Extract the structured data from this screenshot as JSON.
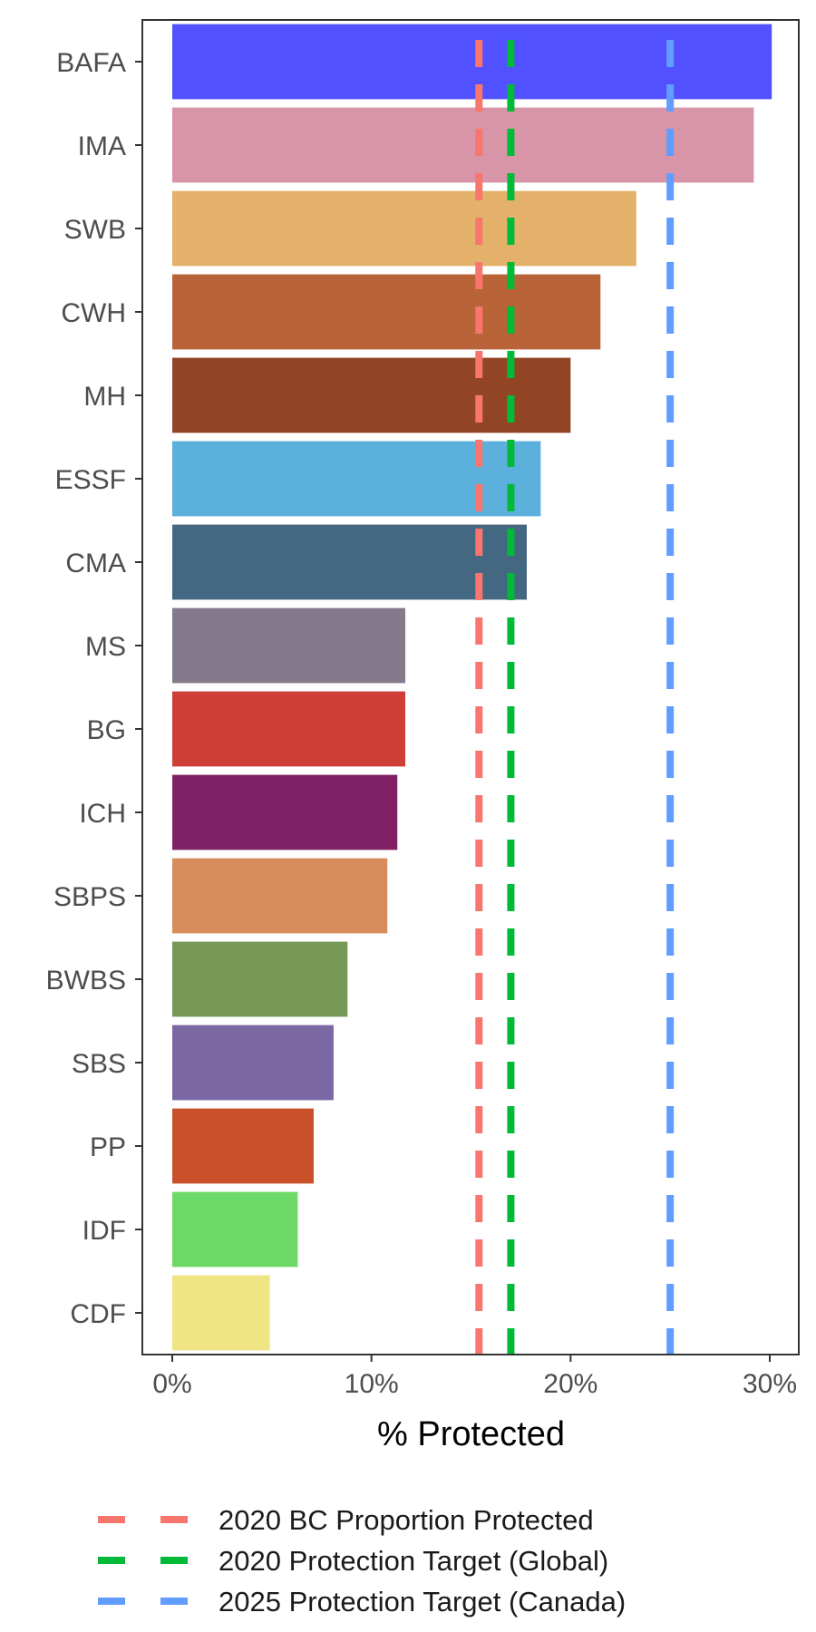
{
  "chart_data": {
    "type": "bar",
    "orientation": "horizontal",
    "xlabel": "% Protected",
    "ylabel": "",
    "xlim": [
      0,
      31.5
    ],
    "x_ticks": [
      0,
      10,
      20,
      30
    ],
    "x_tick_labels": [
      "0%",
      "10%",
      "20%",
      "30%"
    ],
    "categories": [
      "BAFA",
      "IMA",
      "SWB",
      "CWH",
      "MH",
      "ESSF",
      "CMA",
      "MS",
      "BG",
      "ICH",
      "SBPS",
      "BWBS",
      "SBS",
      "PP",
      "IDF",
      "CDF"
    ],
    "values": [
      30.1,
      29.2,
      23.3,
      21.5,
      20.0,
      18.5,
      17.8,
      11.7,
      11.7,
      11.3,
      10.8,
      8.8,
      8.1,
      7.1,
      6.3,
      4.9
    ],
    "bar_colors": [
      "#5151FF",
      "#D795A7",
      "#E3B169",
      "#B96338",
      "#924524",
      "#5CB0DC",
      "#456882",
      "#837A8C",
      "#CE3D36",
      "#7F2164",
      "#D68D5B",
      "#769A55",
      "#7B67A4",
      "#C85129",
      "#6CD966",
      "#F0E584"
    ],
    "grid": false,
    "legend_position": "bottom",
    "reference_lines": [
      {
        "name": "2020 BC Proportion Protected",
        "value": 15.4,
        "color": "#F8766D",
        "style": "dashed"
      },
      {
        "name": "2020 Protection Target (Global)",
        "value": 17.0,
        "color": "#00BA38",
        "style": "dashed"
      },
      {
        "name": "2025 Protection Target (Canada)",
        "value": 25.0,
        "color": "#619CFF",
        "style": "dashed"
      }
    ]
  }
}
